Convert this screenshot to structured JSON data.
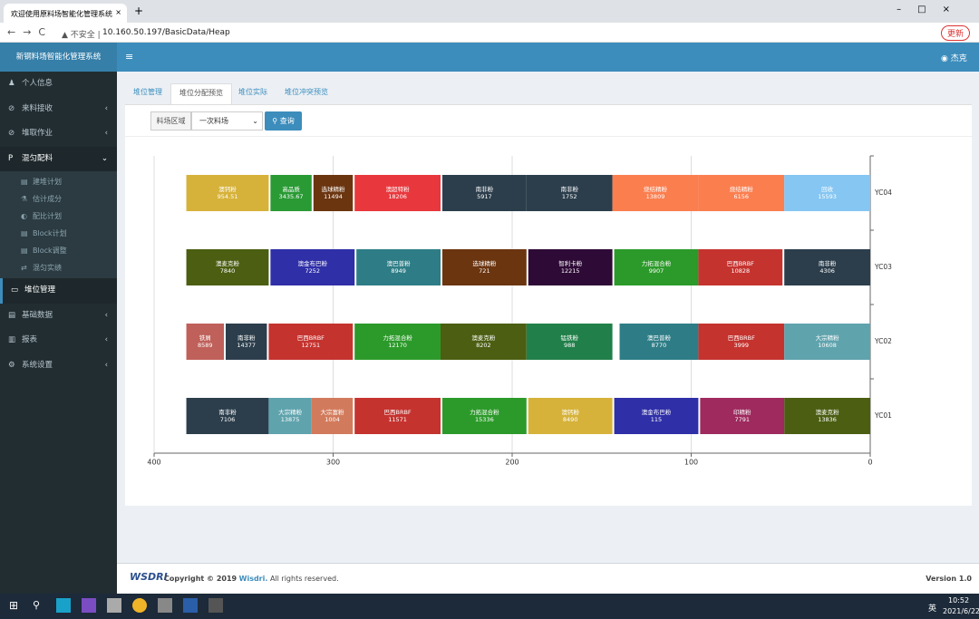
{
  "browser": {
    "tab_title": "欢迎使用原料场智能化管理系统",
    "security": "不安全",
    "url": "10.160.50.197/BasicData/Heap",
    "update": "更新"
  },
  "header": {
    "brand": "新钢料场智能化管理系统",
    "user": "杰克"
  },
  "sidebar": {
    "items": [
      "个人信息",
      "来料接收",
      "堆取作业",
      "混匀配料",
      "堆位管理",
      "基础数据",
      "报表",
      "系统设置"
    ],
    "submenu": [
      "建堆计划",
      "估计成分",
      "配比计划",
      "Block计划",
      "Block调整",
      "混匀实绩"
    ]
  },
  "tabs": [
    "堆位管理",
    "堆位分配预览",
    "堆位实际",
    "堆位冲突预览"
  ],
  "filter": {
    "label": "料场区域",
    "selected": "一次料场",
    "button": "查询"
  },
  "chart_data": {
    "type": "range-bar",
    "xlim": [
      400,
      0
    ],
    "xticks": [
      400,
      300,
      200,
      100,
      0
    ],
    "grid": true,
    "rows": [
      {
        "name": "YC04",
        "blocks": [
          {
            "name": "澳钙粉",
            "amount": 954.51,
            "start": 382,
            "end": 336,
            "color": "#d6b23a"
          },
          {
            "name": "高品质",
            "amount": 3435.67,
            "start": 335,
            "end": 312,
            "color": "#2a9a35"
          },
          {
            "name": "选球精粉",
            "amount": 11494,
            "start": 311,
            "end": 289,
            "color": "#6b3510"
          },
          {
            "name": "澳超特粉",
            "amount": 18206,
            "start": 288,
            "end": 240,
            "color": "#e8383d"
          },
          {
            "name": "南非粉",
            "amount": 5917,
            "start": 239,
            "end": 192,
            "color": "#2c3e4c"
          },
          {
            "name": "南非粉",
            "amount": 1752,
            "start": 192,
            "end": 144,
            "color": "#2c3e4c"
          },
          {
            "name": "烧结精粉",
            "amount": 13809,
            "start": 144,
            "end": 96,
            "color": "#fb7e4f"
          },
          {
            "name": "烧结精粉",
            "amount": 6156,
            "start": 96,
            "end": 48,
            "color": "#fb7e4f"
          },
          {
            "name": "回收",
            "amount": 15593,
            "start": 48,
            "end": 0,
            "color": "#85c6f2"
          }
        ]
      },
      {
        "name": "YC03",
        "blocks": [
          {
            "name": "澳麦克粉",
            "amount": 7840,
            "start": 382,
            "end": 336,
            "color": "#4b5e12"
          },
          {
            "name": "澳金布巴粉",
            "amount": 7252,
            "start": 335,
            "end": 288,
            "color": "#2f2fa8"
          },
          {
            "name": "澳巴普粉",
            "amount": 8949,
            "start": 287,
            "end": 240,
            "color": "#2e7d86"
          },
          {
            "name": "选球精粉",
            "amount": 721,
            "start": 239,
            "end": 192,
            "color": "#6b3510"
          },
          {
            "name": "智利卡粉",
            "amount": 12215,
            "start": 191,
            "end": 144,
            "color": "#2e0a36"
          },
          {
            "name": "力拓混合粉",
            "amount": 9907,
            "start": 143,
            "end": 96,
            "color": "#2c9a2a"
          },
          {
            "name": "巴西BRBF",
            "amount": 10828,
            "start": 96,
            "end": 49,
            "color": "#c5332f"
          },
          {
            "name": "南非粉",
            "amount": 4306,
            "start": 48,
            "end": 0,
            "color": "#2c3e4c"
          }
        ]
      },
      {
        "name": "YC02",
        "blocks": [
          {
            "name": "铁屑",
            "amount": 8589,
            "start": 382,
            "end": 361,
            "color": "#c0605a"
          },
          {
            "name": "南非粉",
            "amount": 14377,
            "start": 360,
            "end": 337,
            "color": "#2c3e4c"
          },
          {
            "name": "巴西BRBF",
            "amount": 12751,
            "start": 336,
            "end": 289,
            "color": "#c5332f"
          },
          {
            "name": "力拓混合粉",
            "amount": 12170,
            "start": 288,
            "end": 240,
            "color": "#2c9a2a"
          },
          {
            "name": "澳麦克粉",
            "amount": 8202,
            "start": 240,
            "end": 192,
            "color": "#4b5e12"
          },
          {
            "name": "锰铁粉",
            "amount": 988,
            "start": 192,
            "end": 144,
            "color": "#21804a"
          },
          {
            "name": "澳巴普粉",
            "amount": 8770,
            "start": 140,
            "end": 96,
            "color": "#2e7d86"
          },
          {
            "name": "巴西BRBF",
            "amount": 3999,
            "start": 96,
            "end": 48,
            "color": "#c5332f"
          },
          {
            "name": "大宗精粉",
            "amount": 10608,
            "start": 48,
            "end": 0,
            "color": "#5fa3ad"
          }
        ]
      },
      {
        "name": "YC01",
        "blocks": [
          {
            "name": "南非粉",
            "amount": 7106,
            "start": 382,
            "end": 336,
            "color": "#2c3e4c"
          },
          {
            "name": "大宗精粉",
            "amount": 13875,
            "start": 336,
            "end": 312,
            "color": "#5fa3ad"
          },
          {
            "name": "大宗富粉",
            "amount": 1004,
            "start": 312,
            "end": 289,
            "color": "#d27b5c"
          },
          {
            "name": "巴西BRBF",
            "amount": 11571,
            "start": 288,
            "end": 240,
            "color": "#c5332f"
          },
          {
            "name": "力拓混合粉",
            "amount": 15336,
            "start": 239,
            "end": 192,
            "color": "#2c9a2a"
          },
          {
            "name": "澳钙粉",
            "amount": 8490,
            "start": 191,
            "end": 144,
            "color": "#d6b23a"
          },
          {
            "name": "澳金布巴粉",
            "amount": 115,
            "start": 143,
            "end": 96,
            "color": "#2f2fa8"
          },
          {
            "name": "印精粉",
            "amount": 7791,
            "start": 95,
            "end": 48,
            "color": "#9e2a5e"
          },
          {
            "name": "澳麦克粉",
            "amount": 13836,
            "start": 48,
            "end": 0,
            "color": "#4b5e12"
          }
        ]
      }
    ]
  },
  "footer": {
    "logo": "WSDRI",
    "copyright": "Copyright © 2019",
    "company": "Wisdri.",
    "rights": "All rights reserved.",
    "version": "Version 1.0"
  },
  "taskbar": {
    "lang": "英",
    "time": "10:52",
    "date": "2021/6/22"
  }
}
